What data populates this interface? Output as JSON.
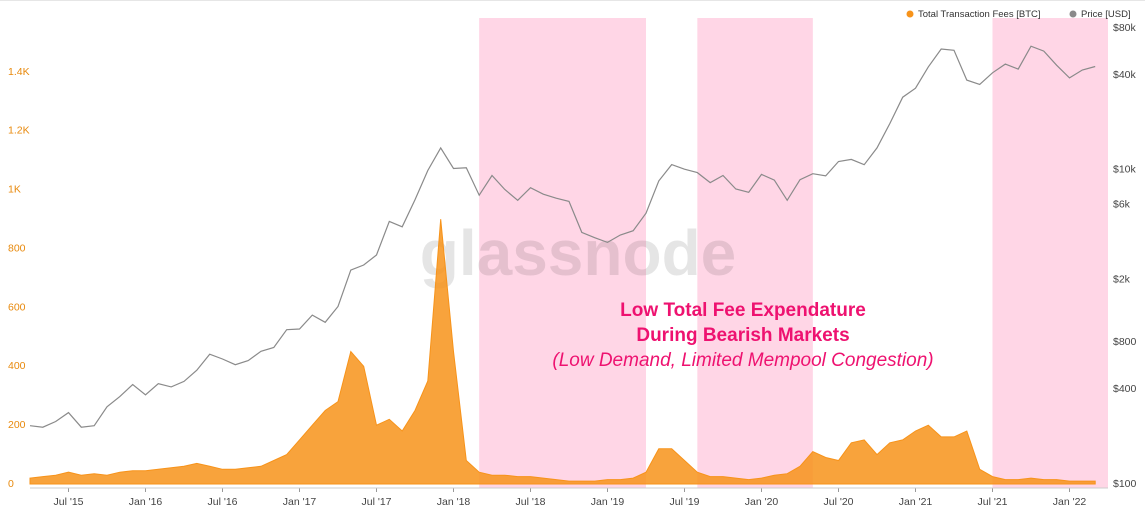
{
  "chart_data": {
    "type": "area-line",
    "legend_position": "top-right",
    "watermark": "glassnode",
    "annotation": [
      "Low Total Fee Expendature",
      "During Bearish Markets",
      "(Low Demand, Limited Mempool Congestion)"
    ],
    "annotation_color": "#ee1270",
    "shaded_ranges": [
      {
        "start": "2018-03",
        "end": "2019-04"
      },
      {
        "start": "2019-08",
        "end": "2020-05"
      },
      {
        "start": "2021-07",
        "end": "2022-04"
      }
    ],
    "shade_color": "#ffd6e6",
    "x": [
      "2015-04",
      "2015-05",
      "2015-06",
      "2015-07",
      "2015-08",
      "2015-09",
      "2015-10",
      "2015-11",
      "2015-12",
      "2016-01",
      "2016-02",
      "2016-03",
      "2016-04",
      "2016-05",
      "2016-06",
      "2016-07",
      "2016-08",
      "2016-09",
      "2016-10",
      "2016-11",
      "2016-12",
      "2017-01",
      "2017-02",
      "2017-03",
      "2017-04",
      "2017-05",
      "2017-06",
      "2017-07",
      "2017-08",
      "2017-09",
      "2017-10",
      "2017-11",
      "2017-12",
      "2018-01",
      "2018-02",
      "2018-03",
      "2018-04",
      "2018-05",
      "2018-06",
      "2018-07",
      "2018-08",
      "2018-09",
      "2018-10",
      "2018-11",
      "2018-12",
      "2019-01",
      "2019-02",
      "2019-03",
      "2019-04",
      "2019-05",
      "2019-06",
      "2019-07",
      "2019-08",
      "2019-09",
      "2019-10",
      "2019-11",
      "2019-12",
      "2020-01",
      "2020-02",
      "2020-03",
      "2020-04",
      "2020-05",
      "2020-06",
      "2020-07",
      "2020-08",
      "2020-09",
      "2020-10",
      "2020-11",
      "2020-12",
      "2021-01",
      "2021-02",
      "2021-03",
      "2021-04",
      "2021-05",
      "2021-06",
      "2021-07",
      "2021-08",
      "2021-09",
      "2021-10",
      "2021-11",
      "2021-12",
      "2022-01",
      "2022-02",
      "2022-03"
    ],
    "series": [
      {
        "name": "Total Transaction Fees [BTC]",
        "color": "#f7931a",
        "axis": "y",
        "values": [
          20,
          25,
          30,
          40,
          30,
          35,
          30,
          40,
          45,
          45,
          50,
          55,
          60,
          70,
          60,
          50,
          50,
          55,
          60,
          80,
          100,
          150,
          200,
          250,
          280,
          450,
          400,
          200,
          220,
          180,
          250,
          350,
          900,
          450,
          80,
          40,
          30,
          30,
          25,
          25,
          20,
          15,
          10,
          10,
          10,
          15,
          15,
          20,
          40,
          120,
          120,
          80,
          40,
          25,
          25,
          20,
          15,
          20,
          30,
          35,
          60,
          110,
          90,
          80,
          140,
          150,
          100,
          140,
          150,
          180,
          200,
          160,
          160,
          180,
          50,
          25,
          15,
          15,
          20,
          15,
          15,
          10,
          10,
          10
        ]
      },
      {
        "name": "Price [USD]",
        "color": "#8a8a8a",
        "axis": "y2",
        "values": [
          235,
          230,
          250,
          285,
          230,
          235,
          310,
          360,
          430,
          370,
          435,
          415,
          450,
          530,
          670,
          625,
          575,
          610,
          700,
          740,
          960,
          970,
          1190,
          1070,
          1350,
          2300,
          2480,
          2870,
          4700,
          4340,
          6450,
          9900,
          13800,
          10200,
          10300,
          6900,
          9200,
          7500,
          6400,
          7700,
          7000,
          6600,
          6300,
          4000,
          3700,
          3450,
          3850,
          4100,
          5300,
          8500,
          10800,
          10100,
          9600,
          8300,
          9200,
          7550,
          7200,
          9350,
          8600,
          6400,
          8650,
          9450,
          9150,
          11300,
          11650,
          10780,
          13800,
          19700,
          29000,
          33100,
          45200,
          58800,
          57700,
          37300,
          35000,
          41500,
          47100,
          43800,
          61300,
          57000,
          46300,
          38500,
          43200,
          45500
        ]
      }
    ],
    "xlim": [
      "2015-04",
      "2022-04"
    ],
    "xticks": [
      {
        "value": "2015-07",
        "label": "Jul '15"
      },
      {
        "value": "2016-01",
        "label": "Jan '16"
      },
      {
        "value": "2016-07",
        "label": "Jul '16"
      },
      {
        "value": "2017-01",
        "label": "Jan '17"
      },
      {
        "value": "2017-07",
        "label": "Jul '17"
      },
      {
        "value": "2018-01",
        "label": "Jan '18"
      },
      {
        "value": "2018-07",
        "label": "Jul '18"
      },
      {
        "value": "2019-01",
        "label": "Jan '19"
      },
      {
        "value": "2019-07",
        "label": "Jul '19"
      },
      {
        "value": "2020-01",
        "label": "Jan '20"
      },
      {
        "value": "2020-07",
        "label": "Jul '20"
      },
      {
        "value": "2021-01",
        "label": "Jan '21"
      },
      {
        "value": "2021-07",
        "label": "Jul '21"
      },
      {
        "value": "2022-01",
        "label": "Jan '22"
      }
    ],
    "ylim": [
      0,
      1550
    ],
    "yticks": [
      0,
      200,
      400,
      600,
      800,
      {
        "value": 1000,
        "label": "1K"
      },
      {
        "value": 1200,
        "label": "1.2K"
      },
      {
        "value": 1400,
        "label": "1.4K"
      }
    ],
    "y2lim": [
      100,
      80000
    ],
    "y2_scale": "log",
    "y2ticks": [
      {
        "value": 100,
        "label": "$100"
      },
      {
        "value": 400,
        "label": "$400"
      },
      {
        "value": 800,
        "label": "$800"
      },
      {
        "value": 2000,
        "label": "$2k"
      },
      {
        "value": 6000,
        "label": "$6k"
      },
      {
        "value": 10000,
        "label": "$10k"
      },
      {
        "value": 40000,
        "label": "$40k"
      },
      {
        "value": 80000,
        "label": "$80k"
      }
    ]
  }
}
